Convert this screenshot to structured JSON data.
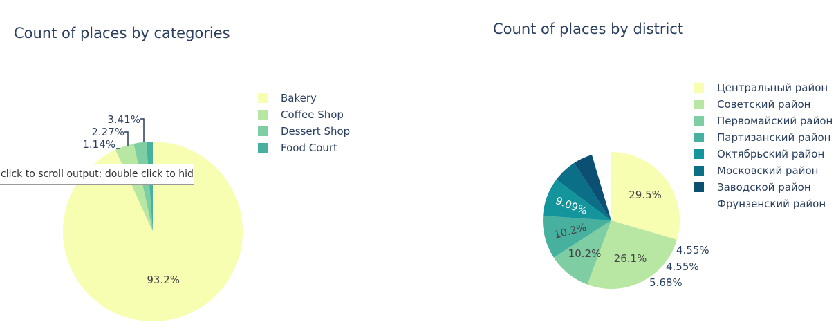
{
  "charts": [
    {
      "title": "Count of places by categories",
      "tooltip": "click to scroll output; double click to hide",
      "chart_data": {
        "type": "pie",
        "labels": [
          "Bakery",
          "Coffee Shop",
          "Dessert Shop",
          "Food Court"
        ],
        "values": [
          93.2,
          3.41,
          2.27,
          1.14
        ],
        "text": [
          "93.2%",
          "3.41%",
          "2.27%",
          "1.14%"
        ],
        "colors": [
          "#f7fdb1",
          "#b8e6a3",
          "#7fcda3",
          "#47b09e"
        ],
        "legend_position": "right"
      }
    },
    {
      "title": "Count of places by district",
      "chart_data": {
        "type": "pie",
        "labels": [
          "Центральный район",
          "Советский район",
          "Первомайский район",
          "Партизанский район",
          "Октябрьский район",
          "Московский район",
          "Заводской район",
          "Фрунзенский район"
        ],
        "values": [
          29.5,
          26.1,
          10.2,
          10.2,
          9.09,
          5.68,
          4.55,
          4.55
        ],
        "text": [
          "29.5%",
          "26.1%",
          "10.2%",
          "10.2%",
          "9.09%",
          "5.68%",
          "4.55%",
          "4.55%"
        ],
        "colors": [
          "#f7fdb1",
          "#b8e6a3",
          "#7fcda3",
          "#47b09e",
          "#14959b",
          "#0a6f87",
          "#0b4f73",
          "#ffffff"
        ],
        "legend_position": "right"
      }
    }
  ]
}
